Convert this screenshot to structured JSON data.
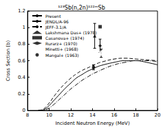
{
  "chart_data": {
    "type": "line",
    "title": "¹²³Sb(n,2n)¹²²ᵐSb",
    "x_label": "Incident Neutron Energy (MeV)",
    "y_label": "Cross Section (b)",
    "xlim": [
      8,
      20
    ],
    "xticks": [
      8,
      10,
      12,
      14,
      16,
      18,
      20
    ],
    "ylim": [
      0,
      1.2
    ],
    "yticks": [
      0,
      0.2,
      0.4,
      0.6,
      0.8,
      1,
      1.2
    ],
    "grid": false,
    "legend": "upper left",
    "series": [
      {
        "name": "Present",
        "type": "line",
        "line_style": "solid",
        "color": "#000000",
        "x": [
          9.0,
          9.5,
          10,
          10.5,
          11,
          11.5,
          12,
          12.5,
          13,
          13.5,
          14,
          14.5,
          15,
          16,
          17,
          18,
          19,
          20
        ],
        "values": [
          0,
          0.01,
          0.06,
          0.13,
          0.2,
          0.27,
          0.33,
          0.39,
          0.43,
          0.47,
          0.5,
          0.53,
          0.55,
          0.58,
          0.6,
          0.6,
          0.58,
          0.55
        ]
      },
      {
        "name": "JENDL/A-96",
        "type": "line",
        "line_style": "dashed",
        "color": "#000000",
        "x": [
          9.0,
          9.5,
          10,
          10.5,
          11,
          11.5,
          12,
          12.5,
          13,
          13.5,
          14,
          14.5,
          15,
          16,
          17,
          18,
          19,
          20
        ],
        "values": [
          0,
          0.02,
          0.09,
          0.18,
          0.26,
          0.33,
          0.39,
          0.44,
          0.48,
          0.51,
          0.54,
          0.57,
          0.59,
          0.62,
          0.63,
          0.62,
          0.61,
          0.6
        ]
      },
      {
        "name": "JEFF-3.1/A",
        "type": "line",
        "line_style": "dashdot",
        "color": "#000000",
        "x": [
          9.0,
          9.5,
          10,
          10.5,
          11,
          11.5,
          12,
          12.5,
          13,
          13.5,
          14,
          14.5,
          15,
          16,
          17,
          18,
          19,
          20
        ],
        "values": [
          0,
          0.005,
          0.03,
          0.08,
          0.14,
          0.2,
          0.26,
          0.31,
          0.36,
          0.4,
          0.44,
          0.47,
          0.5,
          0.55,
          0.58,
          0.6,
          0.6,
          0.59
        ]
      },
      {
        "name": "Lakshmana Das+ (1978)",
        "type": "scatter",
        "marker": "triangle",
        "color": "#000000",
        "x": [
          14.2
        ],
        "values": [
          0.9
        ],
        "errors": [
          0.15
        ]
      },
      {
        "name": "Casanova+ (1974)",
        "type": "scatter",
        "marker": "square",
        "color": "#000000",
        "x": [
          14.7
        ],
        "values": [
          1.01
        ]
      },
      {
        "name": "Rurarz+ (1970)",
        "type": "scatter",
        "marker": "diamond",
        "color": "#000000",
        "x": [
          14.7
        ],
        "values": [
          0.78
        ],
        "errors": [
          0.08
        ]
      },
      {
        "name": "Minetti+ (1968)",
        "type": "scatter",
        "marker": "open_circle",
        "color": "#000000",
        "x": [
          14.8
        ],
        "values": [
          0.69
        ],
        "errors": [
          0.05
        ]
      },
      {
        "name": "Mangal+ (1963)",
        "type": "scatter",
        "marker": "circle",
        "color": "#000000",
        "x": [
          14.1
        ],
        "values": [
          0.52
        ],
        "errors": [
          0.03
        ]
      }
    ]
  }
}
